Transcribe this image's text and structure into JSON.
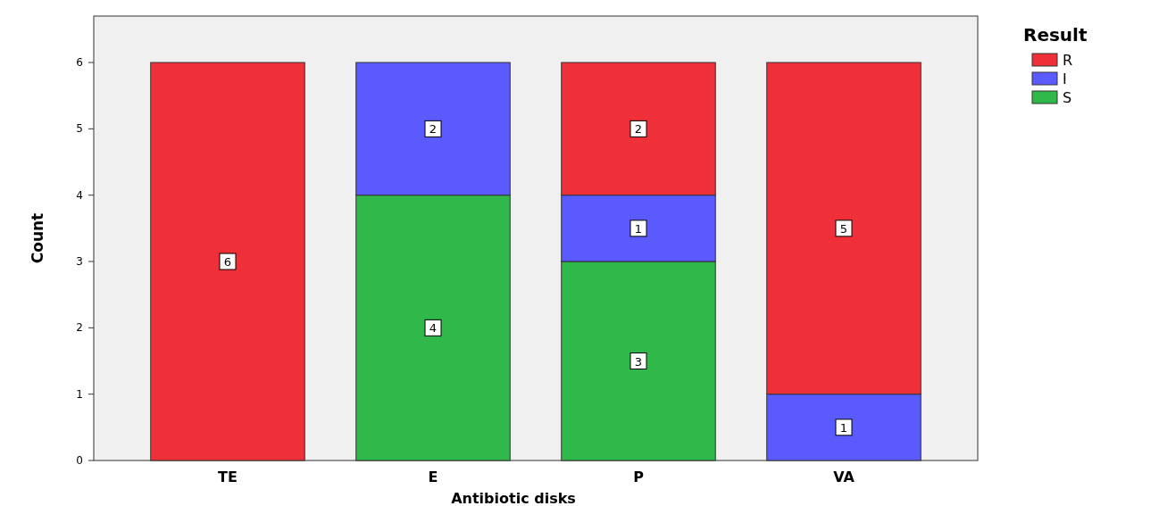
{
  "chart_data": {
    "type": "bar",
    "stacked": true,
    "xlabel": "Antibiotic disks",
    "ylabel": "Count",
    "legend_title": "Result",
    "legend": "top right",
    "grid": false,
    "categories": [
      "TE",
      "E",
      "P",
      "VA"
    ],
    "ylim": [
      0,
      6.7
    ],
    "yticks": [
      0,
      1,
      2,
      3,
      4,
      5,
      6
    ],
    "series": [
      {
        "name": "S",
        "color": "#30b84a",
        "values": [
          0,
          4,
          3,
          0
        ],
        "value_labels": [
          null,
          "4",
          "3",
          null
        ]
      },
      {
        "name": "I",
        "color": "#5a5aff",
        "values": [
          0,
          2,
          1,
          1
        ],
        "value_labels": [
          null,
          "2",
          "1",
          "1"
        ]
      },
      {
        "name": "R",
        "color": "#f03038",
        "values": [
          6,
          0,
          2,
          5
        ],
        "value_labels": [
          "6",
          null,
          "2",
          "5"
        ]
      }
    ]
  }
}
